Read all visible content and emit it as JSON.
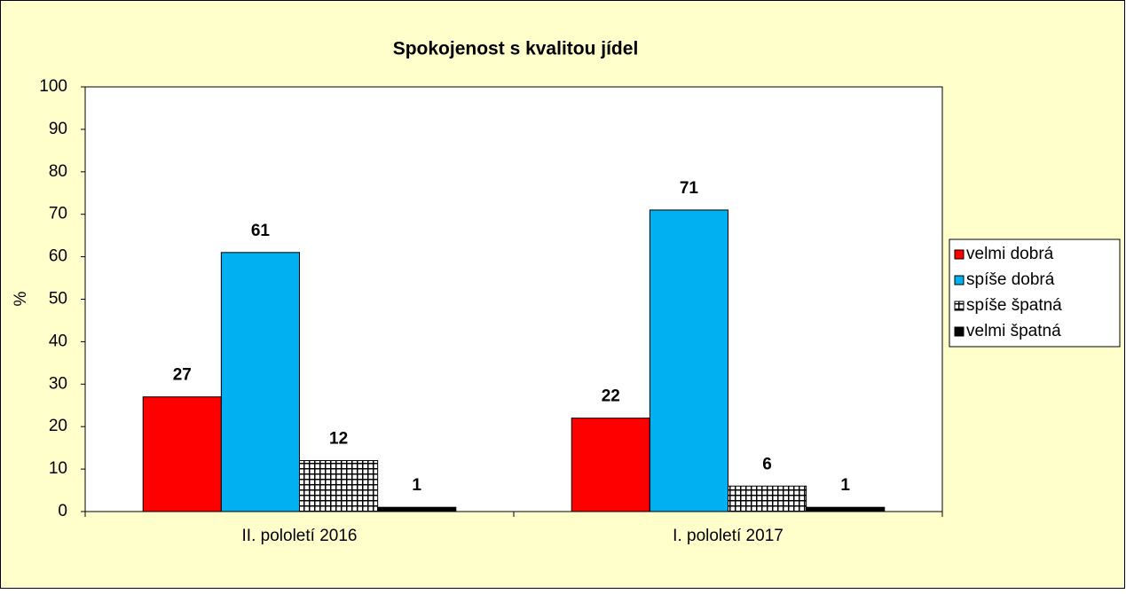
{
  "chart_data": {
    "type": "bar",
    "title": "Spokojenost s kvalitou jídel",
    "y_label": "%",
    "categories": [
      "II. pololetí 2016",
      "I. pololetí 2017"
    ],
    "series": [
      {
        "name": "velmi dobrá",
        "color": "#ff0000",
        "values": [
          27,
          22
        ]
      },
      {
        "name": "spíše dobrá",
        "color": "#00b0f0",
        "values": [
          61,
          71
        ]
      },
      {
        "name": "spíše špatná",
        "color": "#000000",
        "pattern": "grid",
        "values": [
          12,
          6
        ]
      },
      {
        "name": "velmi špatná",
        "color": "#000000",
        "values": [
          1,
          1
        ]
      }
    ],
    "ylim": [
      0,
      100
    ],
    "yticks": [
      0,
      10,
      20,
      30,
      40,
      50,
      60,
      70,
      80,
      90,
      100
    ],
    "grid": false,
    "legend": "right"
  }
}
